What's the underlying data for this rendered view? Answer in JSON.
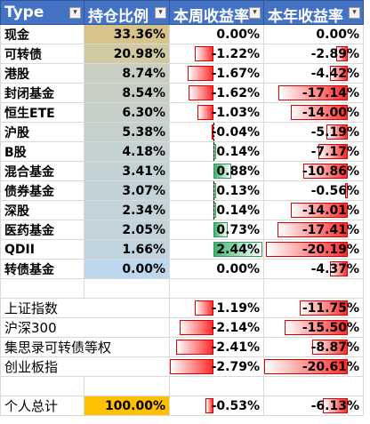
{
  "headers": [
    "Type",
    "持仓比例",
    "本周收益率",
    "本年收益率"
  ],
  "filter_icon": "filter-dropdown-icon",
  "colors": {
    "header": "#4472c4",
    "negative": "#ff2b2b",
    "positive": "#3cb371",
    "hold_high": "#d6c48a",
    "hold_low": "#bdd7ee",
    "total_highlight": "#ffc000"
  },
  "rows": [
    {
      "name": "现金",
      "hold": "33.36%",
      "hold_value": 33.36,
      "week": "0.00%",
      "week_value": 0.0,
      "year": "0.00%",
      "year_value": 0.0
    },
    {
      "name": "可转债",
      "hold": "20.98%",
      "hold_value": 20.98,
      "week": "-1.22%",
      "week_value": -1.22,
      "year": "-2.89%",
      "year_value": -2.89
    },
    {
      "name": "港股",
      "hold": "8.74%",
      "hold_value": 8.74,
      "week": "-1.67%",
      "week_value": -1.67,
      "year": "-4.42%",
      "year_value": -4.42
    },
    {
      "name": "封闭基金",
      "hold": "8.54%",
      "hold_value": 8.54,
      "week": "-1.62%",
      "week_value": -1.62,
      "year": "-17.14%",
      "year_value": -17.14
    },
    {
      "name": "恒生ETE",
      "hold": "6.30%",
      "hold_value": 6.3,
      "week": "-1.03%",
      "week_value": -1.03,
      "year": "-14.00%",
      "year_value": -14.0
    },
    {
      "name": "沪股",
      "hold": "5.38%",
      "hold_value": 5.38,
      "week": "-0.04%",
      "week_value": -0.04,
      "year": "-5.19%",
      "year_value": -5.19
    },
    {
      "name": "B股",
      "hold": "4.18%",
      "hold_value": 4.18,
      "week": "0.14%",
      "week_value": 0.14,
      "year": "-7.17%",
      "year_value": -7.17
    },
    {
      "name": "混合基金",
      "hold": "3.41%",
      "hold_value": 3.41,
      "week": "0.88%",
      "week_value": 0.88,
      "year": "-10.86%",
      "year_value": -10.86
    },
    {
      "name": "债券基金",
      "hold": "3.07%",
      "hold_value": 3.07,
      "week": "0.13%",
      "week_value": 0.13,
      "year": "-0.56%",
      "year_value": -0.56
    },
    {
      "name": "深股",
      "hold": "2.34%",
      "hold_value": 2.34,
      "week": "0.14%",
      "week_value": 0.14,
      "year": "-14.01%",
      "year_value": -14.01
    },
    {
      "name": "医药基金",
      "hold": "2.05%",
      "hold_value": 2.05,
      "week": "0.73%",
      "week_value": 0.73,
      "year": "-17.41%",
      "year_value": -17.41
    },
    {
      "name": "QDII",
      "hold": "1.66%",
      "hold_value": 1.66,
      "week": "2.44%",
      "week_value": 2.44,
      "year": "-20.19%",
      "year_value": -20.19
    },
    {
      "name": "转债基金",
      "hold": "0.00%",
      "hold_value": 0.0,
      "week": "0.00%",
      "week_value": 0.0,
      "year": "-4.37%",
      "year_value": -4.37
    }
  ],
  "indices": [
    {
      "name": "上证指数",
      "week": "-1.19%",
      "week_value": -1.19,
      "year": "-11.75%",
      "year_value": -11.75
    },
    {
      "name": "沪深300",
      "week": "-2.14%",
      "week_value": -2.14,
      "year": "-15.50%",
      "year_value": -15.5
    },
    {
      "name": "集思录可转债等权",
      "week": "-2.41%",
      "week_value": -2.41,
      "year": "-8.87%",
      "year_value": -8.87
    },
    {
      "name": "创业板指",
      "week": "-2.79%",
      "week_value": -2.79,
      "year": "-20.61%",
      "year_value": -20.61
    }
  ],
  "total": {
    "name": "个人总计",
    "hold": "100.00%",
    "week": "-0.53%",
    "week_value": -0.53,
    "year": "-6.13%",
    "year_value": -6.13
  }
}
